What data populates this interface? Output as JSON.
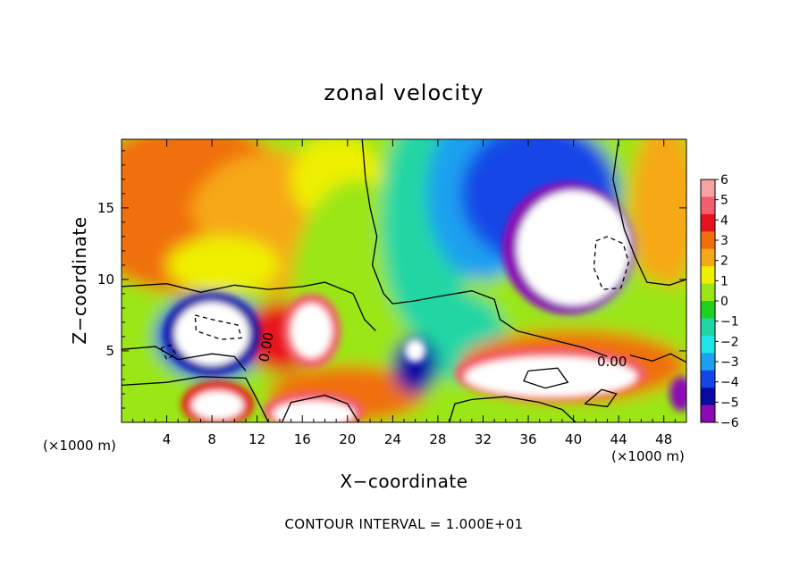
{
  "chart_data": {
    "type": "heatmap",
    "title": "zonal velocity",
    "xlabel": "X−coordinate",
    "ylabel": "Z−coordinate",
    "x_unit_label": "(×1000 m)",
    "x_unit_label_right": "(×1000 m)",
    "footnote": "CONTOUR INTERVAL = 1.000E+01",
    "xlim": [
      0,
      50
    ],
    "ylim": [
      0,
      19.8
    ],
    "x_ticks": [
      4,
      8,
      12,
      16,
      20,
      24,
      28,
      32,
      36,
      40,
      44,
      48
    ],
    "x_tick_labels": [
      "4",
      "8",
      "12",
      "16",
      "20",
      "24",
      "28",
      "32",
      "36",
      "40",
      "44",
      "48"
    ],
    "y_ticks": [
      5,
      10,
      15
    ],
    "y_tick_labels": [
      "5",
      "10",
      "15"
    ],
    "colorbar": {
      "range": [
        -6,
        6
      ],
      "labels": [
        "6",
        "5",
        "4",
        "3",
        "2",
        "1",
        "0",
        "−1",
        "−2",
        "−3",
        "−4",
        "−5",
        "−6"
      ],
      "colors": [
        "#f7a3a3",
        "#f25f6e",
        "#e8121e",
        "#f06f0a",
        "#f6a818",
        "#eef000",
        "#9be616",
        "#1ed21e",
        "#20d6a4",
        "#1ee6e6",
        "#1ea0f0",
        "#1446e6",
        "#0a0aa4",
        "#8c0ab4"
      ]
    },
    "contour_label": "0.00",
    "grid": false,
    "legend": "colorbar-right"
  }
}
